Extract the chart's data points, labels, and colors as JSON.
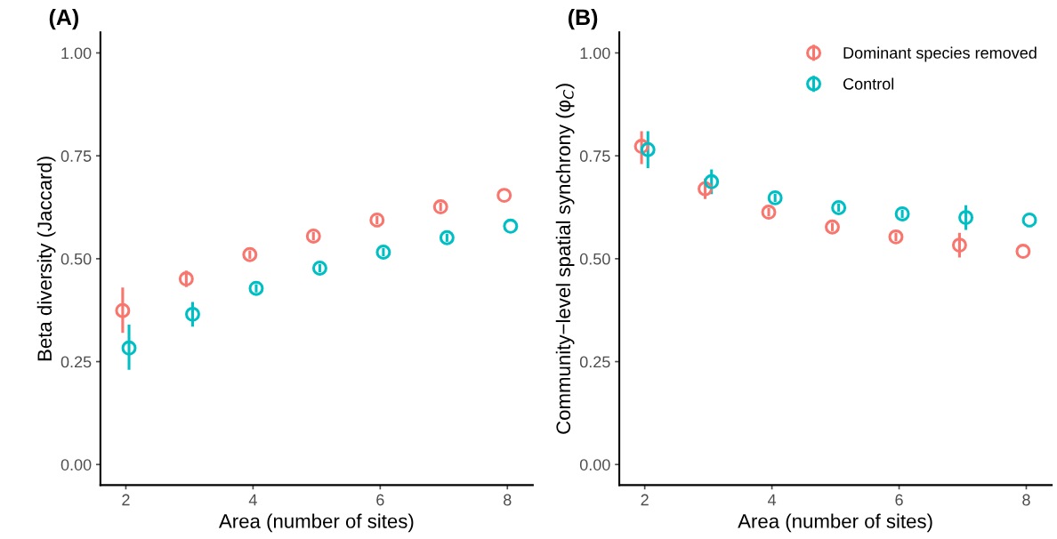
{
  "chart_data": [
    {
      "type": "scatter",
      "title": "(A)",
      "xlabel": "Area (number of sites)",
      "ylabel": "Beta diversity (Jaccard)",
      "xlim": [
        1.6,
        8.4
      ],
      "ylim": [
        -0.05,
        1.05
      ],
      "xticks": [
        2,
        4,
        6,
        8
      ],
      "yticks": [
        {
          "value": 0,
          "label": "0.00"
        },
        {
          "value": 0.25,
          "label": "0.25"
        },
        {
          "value": 0.5,
          "label": "0.50"
        },
        {
          "value": 0.75,
          "label": "0.75"
        },
        {
          "value": 1,
          "label": "1.00"
        }
      ],
      "grid": false,
      "legend": false,
      "marker": "circle",
      "series": [
        {
          "color": "#f8766d",
          "x": [
            1.95,
            2.95,
            3.95,
            4.95,
            5.95,
            6.95,
            7.95
          ],
          "values": [
            0.374,
            0.451,
            0.51,
            0.555,
            0.594,
            0.626,
            0.654
          ],
          "errors": [
            [
              0.32,
              0.43
            ],
            0.02,
            0.01,
            0.01,
            0.01,
            0.01,
            null
          ]
        },
        {
          "color": "#00bfc4",
          "x": [
            2.05,
            3.05,
            4.05,
            5.05,
            6.05,
            7.05,
            8.05
          ],
          "values": [
            0.283,
            0.365,
            0.428,
            0.477,
            0.516,
            0.551,
            0.579
          ],
          "errors": [
            [
              0.23,
              0.34
            ],
            0.03,
            0.01,
            0.01,
            0.01,
            0.01,
            null
          ]
        }
      ]
    },
    {
      "type": "scatter",
      "title": "(B)",
      "xlabel": "Area (number of sites)",
      "ylabel": "Community−level spatial synchrony (φ$_{C}$)",
      "xlim": [
        1.6,
        8.4
      ],
      "ylim": [
        -0.05,
        1.05
      ],
      "xticks": [
        2,
        4,
        6,
        8
      ],
      "yticks": [
        {
          "value": 0,
          "label": "0.00"
        },
        {
          "value": 0.25,
          "label": "0.25"
        },
        {
          "value": 0.5,
          "label": "0.50"
        },
        {
          "value": 0.75,
          "label": "0.75"
        },
        {
          "value": 1,
          "label": "1.00"
        }
      ],
      "grid": false,
      "legend": "top right",
      "marker": "circle",
      "series": [
        {
          "name": "Dominant species removed",
          "color": "#f8766d",
          "x": [
            1.95,
            2.95,
            3.95,
            4.95,
            5.95,
            6.95,
            7.95
          ],
          "values": [
            0.773,
            0.67,
            0.613,
            0.577,
            0.553,
            0.533,
            0.518
          ],
          "errors": [
            [
              0.73,
              0.81
            ],
            0.025,
            0.01,
            0.01,
            0.01,
            0.03,
            null
          ]
        },
        {
          "name": "Control",
          "color": "#00bfc4",
          "x": [
            2.05,
            3.05,
            4.05,
            5.05,
            6.05,
            7.05,
            8.05
          ],
          "values": [
            0.765,
            0.687,
            0.648,
            0.624,
            0.609,
            0.6,
            0.594
          ],
          "errors": [
            [
              0.72,
              0.81
            ],
            0.03,
            0.01,
            0.01,
            0.01,
            0.03,
            null
          ]
        }
      ]
    }
  ]
}
